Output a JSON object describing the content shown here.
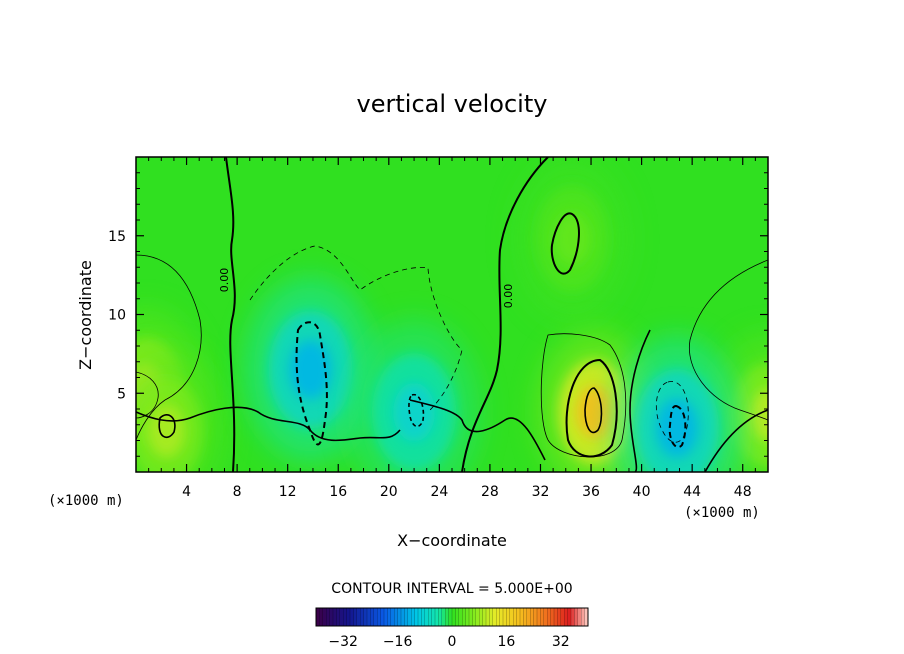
{
  "chart_data": {
    "type": "heatmap",
    "title": "vertical velocity",
    "xlabel": "X−coordinate",
    "ylabel": "Z−coordinate",
    "x_unit_left": "(×1000 m)",
    "x_unit_right": "(×1000 m)",
    "xlim": [
      0,
      50
    ],
    "ylim": [
      0,
      20
    ],
    "x_ticks": [
      4,
      8,
      12,
      16,
      20,
      24,
      28,
      32,
      36,
      40,
      44,
      48
    ],
    "y_ticks": [
      5,
      10,
      15
    ],
    "contour_interval_text": "CONTOUR INTERVAL = 5.000E+00",
    "contour_interval": 5,
    "contour_zero_label": "0.00",
    "colorbar": {
      "range": [
        -40,
        40
      ],
      "tick_values": [
        -32,
        -16,
        0,
        16,
        32
      ],
      "tick_labels": [
        "−32",
        "−16",
        "0",
        "16",
        "32"
      ]
    },
    "features": [
      {
        "kind": "updraft",
        "x": 36.3,
        "z": 3.8,
        "peak": 20
      },
      {
        "kind": "updraft",
        "x": 0.8,
        "z": 5.2,
        "peak": 11
      },
      {
        "kind": "updraft",
        "x": 2.4,
        "z": 2.6,
        "peak": 9
      },
      {
        "kind": "updraft",
        "x": 50.0,
        "z": 3.6,
        "peak": 10
      },
      {
        "kind": "downdraft",
        "x": 13.8,
        "z": 6.5,
        "peak": -12
      },
      {
        "kind": "downdraft",
        "x": 42.8,
        "z": 2.8,
        "peak": -12
      },
      {
        "kind": "downdraft",
        "x": 22.0,
        "z": 3.8,
        "peak": -8
      },
      {
        "kind": "updraft",
        "x": 34.5,
        "z": 14.8,
        "peak": 4
      }
    ],
    "colors": {
      "background_field": "#30e020",
      "contour": "#000000"
    }
  }
}
